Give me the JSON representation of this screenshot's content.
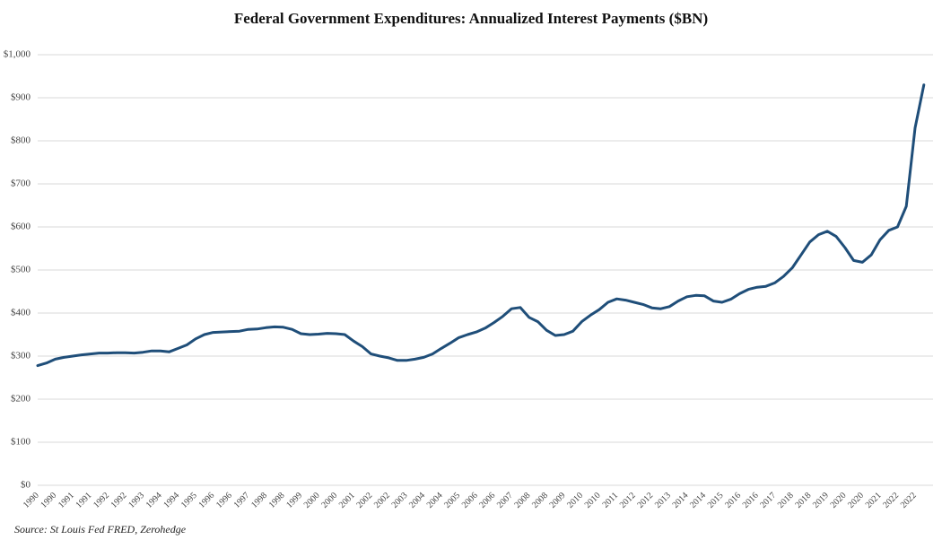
{
  "chart_data": {
    "type": "line",
    "title": "Federal Government Expenditures: Annualized Interest Payments ($BN)",
    "source": "Source: St Louis Fed FRED, Zerohedge",
    "categories": [
      "1990",
      null,
      "1990",
      null,
      "1991",
      null,
      "1991",
      null,
      "1992",
      null,
      "1992",
      null,
      "1993",
      null,
      "1994",
      null,
      "1994",
      null,
      "1995",
      null,
      "1996",
      null,
      "1996",
      null,
      "1997",
      null,
      "1998",
      null,
      "1998",
      null,
      "1999",
      null,
      "2000",
      null,
      "2000",
      null,
      "2001",
      null,
      "2002",
      null,
      "2002",
      null,
      "2003",
      null,
      "2004",
      null,
      "2004",
      null,
      "2005",
      null,
      "2006",
      null,
      "2006",
      null,
      "2007",
      null,
      "2008",
      null,
      "2008",
      null,
      "2009",
      null,
      "2010",
      null,
      "2010",
      null,
      "2011",
      null,
      "2012",
      null,
      "2012",
      null,
      "2013",
      null,
      "2014",
      null,
      "2014",
      null,
      "2015",
      null,
      "2016",
      null,
      "2016",
      null,
      "2017",
      null,
      "2018",
      null,
      "2018",
      null,
      "2019",
      null,
      "2020",
      null,
      "2020",
      null,
      "2021",
      null,
      "2022",
      null,
      "2022",
      null
    ],
    "series": [
      {
        "name": "Interest Payments",
        "color": "#1f4e79",
        "values": [
          278,
          284,
          293,
          297,
          300,
          303,
          305,
          307,
          307,
          308,
          308,
          307,
          309,
          312,
          312,
          310,
          318,
          326,
          340,
          350,
          355,
          356,
          357,
          358,
          362,
          363,
          366,
          368,
          367,
          362,
          352,
          350,
          351,
          353,
          352,
          350,
          335,
          322,
          305,
          300,
          296,
          290,
          290,
          293,
          297,
          305,
          318,
          330,
          343,
          350,
          356,
          365,
          378,
          392,
          410,
          413,
          390,
          380,
          360,
          348,
          350,
          358,
          380,
          395,
          408,
          425,
          433,
          430,
          425,
          420,
          412,
          410,
          415,
          428,
          438,
          441,
          440,
          428,
          425,
          432,
          445,
          455,
          460,
          462,
          470,
          485,
          505,
          535,
          565,
          582,
          590,
          578,
          552,
          522,
          518,
          535,
          570,
          592,
          600,
          648,
          830,
          930
        ]
      }
    ],
    "ylim": [
      0,
      1000
    ],
    "yticks": [
      {
        "value": 0,
        "label": "$0"
      },
      {
        "value": 100,
        "label": "$100"
      },
      {
        "value": 200,
        "label": "$200"
      },
      {
        "value": 300,
        "label": "$300"
      },
      {
        "value": 400,
        "label": "$400"
      },
      {
        "value": 500,
        "label": "$500"
      },
      {
        "value": 600,
        "label": "$600"
      },
      {
        "value": 700,
        "label": "$700"
      },
      {
        "value": 800,
        "label": "$800"
      },
      {
        "value": 900,
        "label": "$900"
      },
      {
        "value": 1000,
        "label": "$1,000"
      }
    ],
    "grid": true
  }
}
